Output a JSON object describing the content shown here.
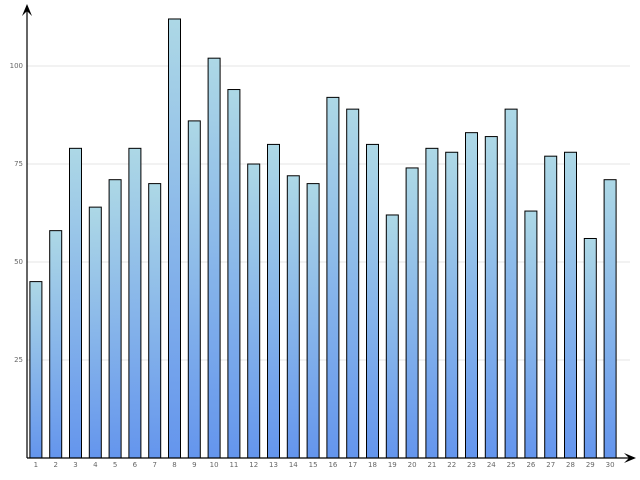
{
  "chart_data": {
    "type": "bar",
    "categories": [
      "1",
      "2",
      "3",
      "4",
      "5",
      "6",
      "7",
      "8",
      "9",
      "10",
      "11",
      "12",
      "13",
      "14",
      "15",
      "16",
      "17",
      "18",
      "19",
      "20",
      "21",
      "22",
      "23",
      "24",
      "25",
      "26",
      "27",
      "28",
      "29",
      "30"
    ],
    "values": [
      45,
      58,
      79,
      64,
      71,
      79,
      70,
      112,
      86,
      102,
      94,
      75,
      80,
      72,
      70,
      92,
      89,
      80,
      62,
      74,
      79,
      78,
      83,
      82,
      89,
      63,
      77,
      78,
      56,
      71
    ],
    "gradient": [
      "#add8e6",
      "#6495ed"
    ],
    "ylim": [
      0,
      116
    ],
    "yticks": [
      25,
      50,
      75,
      100
    ],
    "grid": true
  }
}
